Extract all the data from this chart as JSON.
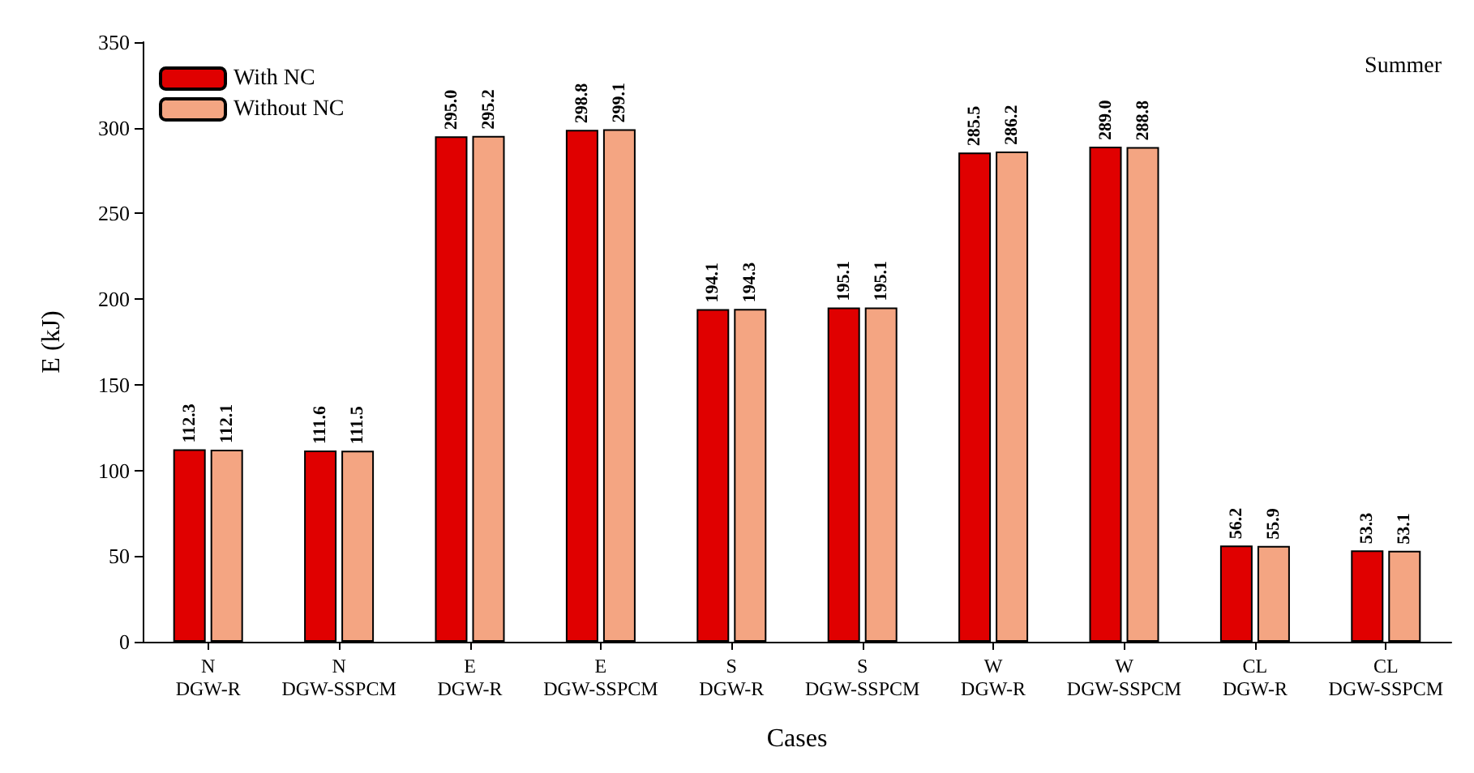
{
  "chart_data": {
    "type": "bar",
    "xlabel": "Cases",
    "ylabel": "E (kJ)",
    "annotations": [
      "Summer"
    ],
    "categories": [
      "N\nDGW-R",
      "N\nDGW-SSPCM",
      "E\nDGW-R",
      "E\nDGW-SSPCM",
      "S\nDGW-R",
      "S\nDGW-SSPCM",
      "W\nDGW-R",
      "W\nDGW-SSPCM",
      "CL\nDGW-R",
      "CL\nDGW-SSPCM"
    ],
    "series": [
      {
        "name": "With NC",
        "color": "#e00000",
        "values": [
          112.3,
          111.6,
          295.0,
          298.8,
          194.1,
          195.1,
          285.5,
          289.0,
          56.2,
          53.3
        ],
        "value_labels": [
          "112.3",
          "111.6",
          "295.0",
          "298.8",
          "194.1",
          "195.1",
          "285.5",
          "289.0",
          "56.2",
          "53.3"
        ]
      },
      {
        "name": "Without NC",
        "color": "#f4a582",
        "values": [
          112.1,
          111.5,
          295.2,
          299.1,
          194.3,
          195.1,
          286.2,
          288.8,
          55.9,
          53.1
        ],
        "value_labels": [
          "112.1",
          "111.5",
          "295.2",
          "299.1",
          "194.3",
          "195.1",
          "286.2",
          "288.8",
          "55.9",
          "53.1"
        ]
      }
    ],
    "ylim": [
      0,
      350
    ],
    "yticks": [
      0,
      50,
      100,
      150,
      200,
      250,
      300,
      350
    ],
    "grid": false,
    "legend": "top left"
  }
}
